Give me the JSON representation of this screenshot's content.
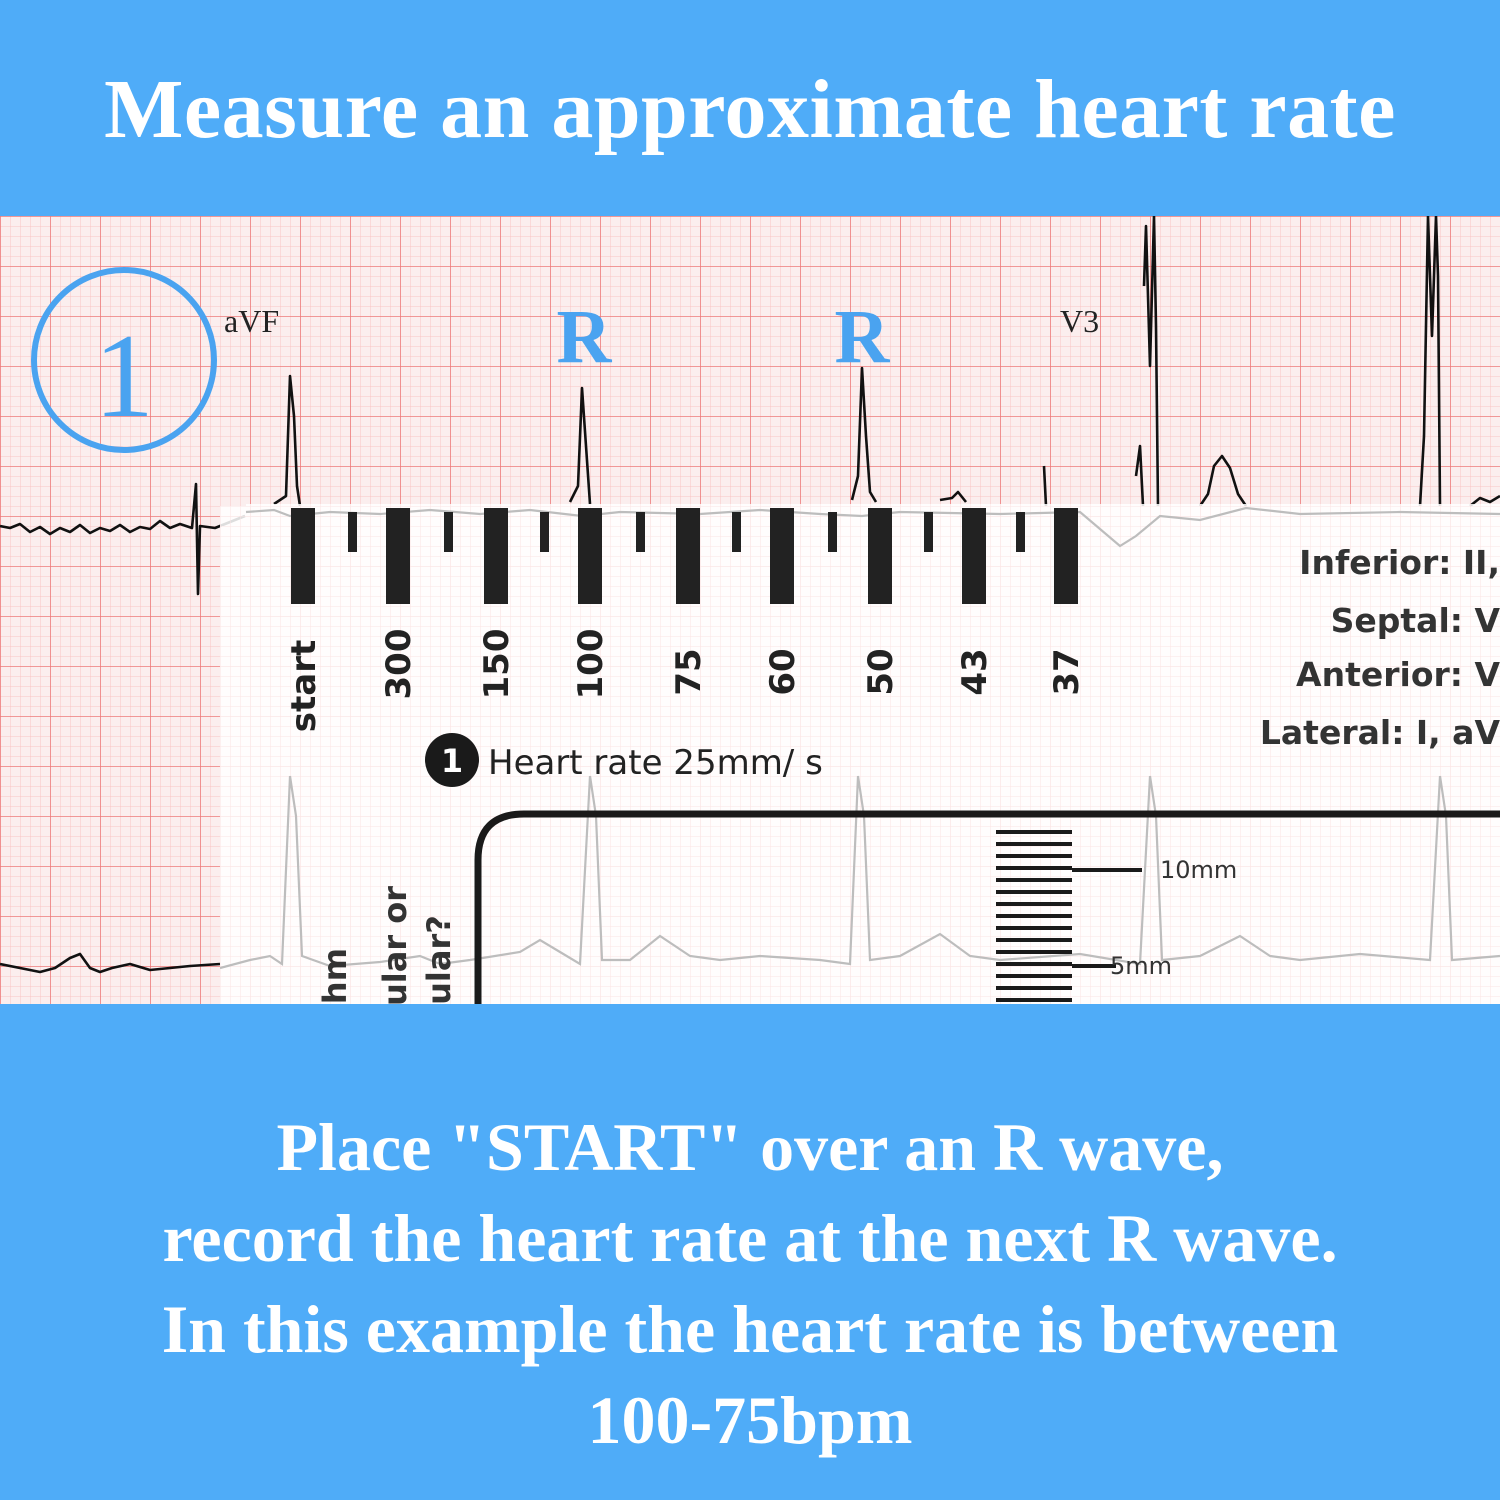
{
  "colors": {
    "band": "#4facf8",
    "grid_fine": "#f8c4c4",
    "grid_major": "#ee7a7a",
    "trace": "#111111",
    "marker": "#4aa3f0",
    "card": "#ffffff"
  },
  "header": {
    "title": "Measure an approximate heart rate"
  },
  "ecg": {
    "step_number": "1",
    "lead_labels": [
      "aVF",
      "V3"
    ],
    "r_labels": [
      "R",
      "R"
    ]
  },
  "ruler": {
    "scale_labels": [
      "start",
      "300",
      "150",
      "100",
      "75",
      "60",
      "50",
      "43",
      "37"
    ],
    "heading_number": "1",
    "heading": "Heart rate 25mm/ s",
    "territories": [
      "Inferior: II,",
      "Septal: V",
      "Anterior: V",
      "Lateral: I, aV"
    ],
    "calibration_labels": [
      "10mm",
      "5mm"
    ],
    "partial_side_text": [
      "hm",
      "ular or",
      "ular?"
    ]
  },
  "footer": {
    "lines": [
      "Place \"START\" over an R wave,",
      "record the heart rate at the next R wave.",
      "In this example the heart rate is between",
      "100-75bpm"
    ]
  }
}
